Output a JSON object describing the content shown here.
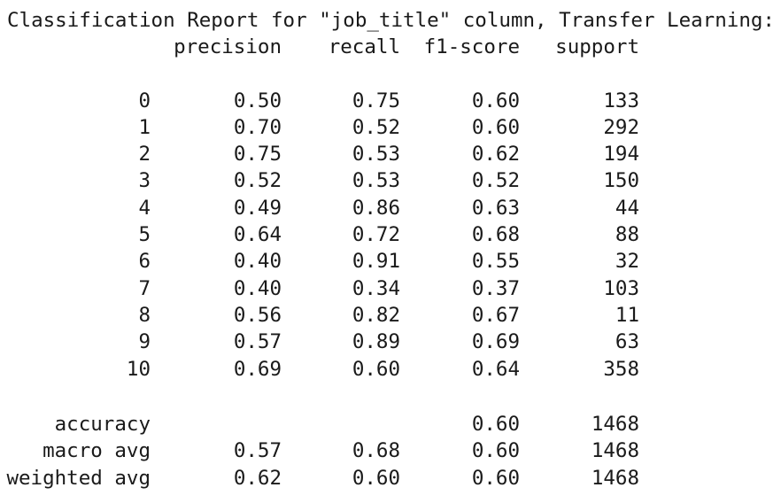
{
  "title": "Classification Report for \"job_title\" column, Transfer Learning:",
  "headers": {
    "precision": "precision",
    "recall": "recall",
    "f1": "f1-score",
    "support": "support"
  },
  "rows": [
    {
      "label": "0",
      "precision": "0.50",
      "recall": "0.75",
      "f1": "0.60",
      "support": "133"
    },
    {
      "label": "1",
      "precision": "0.70",
      "recall": "0.52",
      "f1": "0.60",
      "support": "292"
    },
    {
      "label": "2",
      "precision": "0.75",
      "recall": "0.53",
      "f1": "0.62",
      "support": "194"
    },
    {
      "label": "3",
      "precision": "0.52",
      "recall": "0.53",
      "f1": "0.52",
      "support": "150"
    },
    {
      "label": "4",
      "precision": "0.49",
      "recall": "0.86",
      "f1": "0.63",
      "support": "44"
    },
    {
      "label": "5",
      "precision": "0.64",
      "recall": "0.72",
      "f1": "0.68",
      "support": "88"
    },
    {
      "label": "6",
      "precision": "0.40",
      "recall": "0.91",
      "f1": "0.55",
      "support": "32"
    },
    {
      "label": "7",
      "precision": "0.40",
      "recall": "0.34",
      "f1": "0.37",
      "support": "103"
    },
    {
      "label": "8",
      "precision": "0.56",
      "recall": "0.82",
      "f1": "0.67",
      "support": "11"
    },
    {
      "label": "9",
      "precision": "0.57",
      "recall": "0.89",
      "f1": "0.69",
      "support": "63"
    },
    {
      "label": "10",
      "precision": "0.69",
      "recall": "0.60",
      "f1": "0.64",
      "support": "358"
    }
  ],
  "summary": [
    {
      "label": "accuracy",
      "precision": "",
      "recall": "",
      "f1": "0.60",
      "support": "1468"
    },
    {
      "label": "macro avg",
      "precision": "0.57",
      "recall": "0.68",
      "f1": "0.60",
      "support": "1468"
    },
    {
      "label": "weighted avg",
      "precision": "0.62",
      "recall": "0.60",
      "f1": "0.60",
      "support": "1468"
    }
  ]
}
